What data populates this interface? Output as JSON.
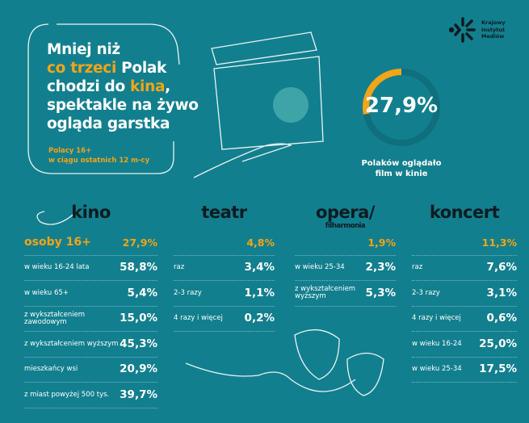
{
  "headline": {
    "line1": "Mniej niż",
    "highlight1": "co trzeci",
    "line2": " Polak",
    "line3": "chodzi do ",
    "highlight2": "kina",
    "line3end": ",",
    "line4": "spektakle na żywo",
    "line5": "ogląda garstka"
  },
  "subtitle": {
    "line1": "Polacy 16+",
    "line2": "w ciągu  ostatnich 12 m-cy"
  },
  "logo": {
    "line1": "Krajowy",
    "line2": "Instytut",
    "line3": "Mediów"
  },
  "summary": {
    "value": "27,9%",
    "fraction": 0.279,
    "caption1": "Polaków oglądało",
    "caption2": "film w kinie"
  },
  "colors": {
    "background": "#127f8e",
    "accent": "#f2a516",
    "dark": "#0d1b22"
  },
  "columns": [
    {
      "title": "kino",
      "rows": [
        {
          "label": "osoby 16+",
          "value": "27,9%"
        },
        {
          "label": "w wieku 16-24 lata",
          "value": "58,8%"
        },
        {
          "label": "w wieku 65+",
          "value": "5,4%"
        },
        {
          "label": "z wykształceniem zawodowym",
          "value": "15,0%"
        },
        {
          "label": "z wykształceniem wyższym",
          "value": "45,3%"
        },
        {
          "label": "mieszkańcy wsi",
          "value": "20,9%"
        },
        {
          "label": "z miast powyżej 500 tys.",
          "value": "39,7%"
        }
      ]
    },
    {
      "title": "teatr",
      "rows": [
        {
          "label": "",
          "value": "4,8%"
        },
        {
          "label": "raz",
          "value": "3,4%"
        },
        {
          "label": "2-3 razy",
          "value": "1,1%"
        },
        {
          "label": "4 razy  i więcej",
          "value": "0,2%"
        }
      ]
    },
    {
      "title": "opera/",
      "subtitle": "filharmonia",
      "rows": [
        {
          "label": "",
          "value": "1,9%"
        },
        {
          "label": "w wieku 25-34",
          "value": "2,3%"
        },
        {
          "label": "z wykształceniem wyższym",
          "value": "5,3%"
        }
      ]
    },
    {
      "title": "koncert",
      "rows": [
        {
          "label": "",
          "value": "11,3%"
        },
        {
          "label": "raz",
          "value": "7,6%"
        },
        {
          "label": "2-3 razy",
          "value": "3,1%"
        },
        {
          "label": "4 razy i więcej",
          "value": "0,6%"
        },
        {
          "label": "w wieku 16-24",
          "value": "25,0%"
        },
        {
          "label": "w wieku 25-34",
          "value": "17,5%"
        }
      ]
    }
  ]
}
